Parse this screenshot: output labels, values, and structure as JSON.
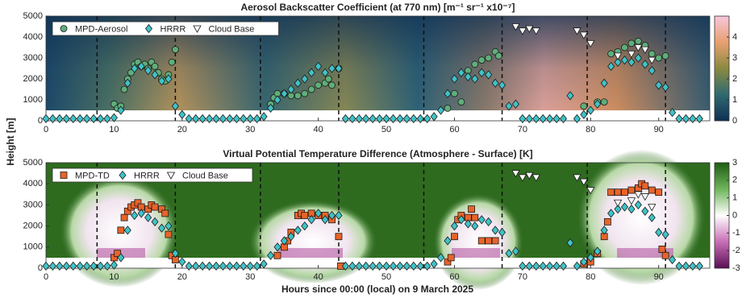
{
  "chart_data": [
    {
      "type": "scatter",
      "title": "Aerosol Backscatter Coefficient (at 770 nm) [m⁻¹ sr⁻¹ x10⁻⁷]",
      "ylabel": "Height [m]",
      "xlim": [
        0,
        97.5
      ],
      "xticks": [
        0,
        10,
        20,
        30,
        40,
        50,
        60,
        70,
        80,
        90
      ],
      "ylim": [
        0,
        5000
      ],
      "yticks": [
        0,
        1000,
        2000,
        3000,
        4000,
        5000
      ],
      "legend": "upper left",
      "vlines": [
        7.5,
        19,
        31.5,
        43,
        55.5,
        67,
        79.5,
        91
      ],
      "colorbar": {
        "lim": [
          0,
          5
        ],
        "ticks": [
          0,
          1,
          2,
          3,
          4
        ],
        "colors": [
          "#0f2f52",
          "#2f6a70",
          "#8a8a40",
          "#e8a070",
          "#f7c6dc"
        ]
      },
      "series": [
        {
          "name": "MPD-Aerosol",
          "marker": "circle",
          "color": "#5fae7a",
          "x": [
            10,
            10.5,
            11,
            11.5,
            12,
            12.5,
            13,
            13.5,
            14,
            14.5,
            15,
            15.5,
            16,
            16.5,
            17,
            17.5,
            18,
            18.5,
            19,
            33,
            33.5,
            34,
            35,
            36,
            37,
            38,
            39,
            40,
            41,
            41.5,
            42,
            43,
            59,
            60,
            61,
            62,
            63,
            64,
            65,
            66,
            66.5,
            79,
            81,
            82,
            83,
            84,
            85,
            86,
            87,
            88,
            89,
            90,
            91
          ],
          "values": [
            800,
            600,
            700,
            1500,
            2000,
            2300,
            2700,
            2800,
            2600,
            2700,
            2500,
            2800,
            2600,
            2300,
            2000,
            1900,
            2200,
            2800,
            3400,
            800,
            1100,
            1300,
            1300,
            1200,
            1200,
            1300,
            1500,
            1700,
            1800,
            2000,
            1700,
            2500,
            600,
            1300,
            900,
            2400,
            2700,
            2900,
            3000,
            3300,
            3100,
            700,
            900,
            900,
            3200,
            3300,
            3500,
            3700,
            3800,
            3600,
            3200,
            3000,
            3100
          ]
        },
        {
          "name": "HRRR",
          "marker": "diamond",
          "color": "#3fc3c8",
          "x": [
            0,
            1,
            2,
            3,
            4,
            5,
            6,
            7,
            8,
            9,
            10,
            11,
            12,
            13,
            14,
            15,
            16,
            17,
            18,
            19,
            20,
            21,
            22,
            23,
            24,
            25,
            26,
            27,
            28,
            29,
            30,
            31,
            32,
            33,
            34,
            35,
            36,
            37,
            38,
            39,
            40,
            41,
            42,
            43,
            44,
            45,
            46,
            47,
            48,
            49,
            50,
            51,
            52,
            53,
            54,
            55,
            56,
            57,
            58,
            59,
            60,
            61,
            62,
            63,
            64,
            65,
            66,
            67,
            68,
            69,
            70,
            71,
            72,
            73,
            74,
            75,
            76,
            77,
            78,
            79,
            80,
            81,
            82,
            83,
            84,
            85,
            86,
            87,
            88,
            89,
            90,
            91,
            92,
            93,
            94,
            95,
            96
          ],
          "values": [
            100,
            100,
            100,
            100,
            100,
            100,
            100,
            100,
            100,
            100,
            150,
            500,
            1800,
            2500,
            2600,
            2400,
            2200,
            1900,
            2000,
            700,
            300,
            100,
            100,
            100,
            100,
            100,
            100,
            100,
            100,
            100,
            100,
            100,
            200,
            600,
            1000,
            1300,
            1500,
            1800,
            2000,
            2300,
            2600,
            2300,
            2500,
            2500,
            100,
            100,
            100,
            100,
            100,
            100,
            100,
            100,
            100,
            100,
            100,
            100,
            100,
            200,
            500,
            1300,
            2000,
            2300,
            2100,
            2000,
            2300,
            2200,
            1800,
            1700,
            700,
            800,
            100,
            100,
            100,
            100,
            100,
            100,
            100,
            1200,
            100,
            300,
            500,
            800,
            1800,
            2600,
            2800,
            2900,
            2800,
            3000,
            2700,
            2400,
            1700,
            1600,
            400,
            100,
            100,
            100,
            100
          ]
        },
        {
          "name": "Cloud Base",
          "marker": "triangle",
          "color": "#ffffff",
          "x": [
            69,
            70,
            71,
            72,
            78,
            79,
            80,
            84,
            86,
            87,
            88,
            89
          ],
          "values": [
            4500,
            4300,
            4400,
            4300,
            4300,
            4100,
            3700,
            3100,
            3200,
            3500,
            3400,
            2900
          ]
        }
      ]
    },
    {
      "type": "scatter",
      "title": "Virtual Potential Temperature Difference (Atmosphere - Surface) [K]",
      "xlabel": "Hours since 00:00 (local) on 9 March 2025",
      "xlim": [
        0,
        97.5
      ],
      "xticks": [
        0,
        10,
        20,
        30,
        40,
        50,
        60,
        70,
        80,
        90
      ],
      "ylim": [
        0,
        5000
      ],
      "yticks": [
        0,
        1000,
        2000,
        3000,
        4000,
        5000
      ],
      "legend": "upper left",
      "vlines": [
        7.5,
        19,
        31.5,
        43,
        55.5,
        67,
        79.5,
        91
      ],
      "colorbar": {
        "lim": [
          -3,
          3
        ],
        "ticks": [
          -3,
          -2,
          -1,
          0,
          1,
          2,
          3
        ],
        "colors": [
          "#5a0f55",
          "#c86fb5",
          "#ffffff",
          "#6fb55a",
          "#1d5c12"
        ]
      },
      "series": [
        {
          "name": "MPD-TD",
          "marker": "square",
          "color": "#e8642a",
          "x": [
            10,
            10.5,
            11,
            11.5,
            12,
            12.5,
            13,
            13.5,
            14,
            15,
            15.5,
            16,
            17,
            17.5,
            18,
            18.5,
            19,
            34,
            35,
            35.5,
            36,
            37,
            37.5,
            38,
            39,
            40,
            41,
            42,
            43,
            43.3,
            59,
            59.5,
            60,
            60.5,
            61,
            62,
            62.5,
            63,
            64,
            65,
            66,
            79,
            80,
            81,
            82,
            82.5,
            83,
            84,
            85,
            86,
            87,
            87.5,
            88,
            89,
            90,
            90.5,
            91
          ],
          "values": [
            500,
            700,
            1800,
            2400,
            2700,
            2900,
            3000,
            3100,
            2900,
            2800,
            3000,
            2900,
            2800,
            2600,
            1600,
            600,
            400,
            600,
            1000,
            1300,
            1700,
            2500,
            2600,
            2500,
            2600,
            2500,
            2500,
            2300,
            1500,
            100,
            300,
            500,
            1500,
            2300,
            2500,
            2400,
            2800,
            2400,
            1300,
            1300,
            1300,
            200,
            300,
            700,
            1500,
            2200,
            3600,
            3600,
            3600,
            3700,
            3800,
            4000,
            3900,
            3700,
            3600,
            900,
            600
          ]
        },
        {
          "name": "HRRR",
          "marker": "diamond",
          "color": "#3fc3c8",
          "x": [
            0,
            1,
            2,
            3,
            4,
            5,
            6,
            7,
            8,
            9,
            10,
            11,
            12,
            13,
            14,
            15,
            16,
            17,
            18,
            19,
            20,
            21,
            22,
            23,
            24,
            25,
            26,
            27,
            28,
            29,
            30,
            31,
            32,
            33,
            34,
            35,
            36,
            37,
            38,
            39,
            40,
            41,
            42,
            43,
            44,
            45,
            46,
            47,
            48,
            49,
            50,
            51,
            52,
            53,
            54,
            55,
            56,
            57,
            58,
            59,
            60,
            61,
            62,
            63,
            64,
            65,
            66,
            67,
            68,
            69,
            70,
            71,
            72,
            73,
            74,
            75,
            76,
            77,
            78,
            79,
            80,
            81,
            82,
            83,
            84,
            85,
            86,
            87,
            88,
            89,
            90,
            91,
            92,
            93,
            94,
            95,
            96
          ],
          "values": [
            100,
            100,
            100,
            100,
            100,
            100,
            100,
            100,
            100,
            100,
            150,
            500,
            1800,
            2500,
            2600,
            2400,
            2200,
            1900,
            2000,
            700,
            300,
            100,
            100,
            100,
            100,
            100,
            100,
            100,
            100,
            100,
            100,
            100,
            200,
            600,
            1000,
            1300,
            1500,
            1800,
            2000,
            2300,
            2600,
            2300,
            2500,
            2500,
            100,
            100,
            100,
            100,
            100,
            100,
            100,
            100,
            100,
            100,
            100,
            100,
            100,
            200,
            500,
            1300,
            2000,
            2300,
            2100,
            2000,
            2300,
            2200,
            1800,
            1700,
            700,
            800,
            100,
            100,
            100,
            100,
            100,
            100,
            100,
            1200,
            100,
            300,
            500,
            800,
            1800,
            2600,
            2800,
            2900,
            2800,
            3000,
            2700,
            2400,
            1700,
            1600,
            400,
            100,
            100,
            100,
            100
          ]
        },
        {
          "name": "Cloud Base",
          "marker": "triangle",
          "color": "#ffffff",
          "x": [
            69,
            70,
            71,
            72,
            78,
            79,
            80,
            84,
            86,
            87,
            88,
            89
          ],
          "values": [
            4500,
            4300,
            4400,
            4300,
            4300,
            4100,
            3700,
            3100,
            3200,
            3500,
            3400,
            2900
          ]
        }
      ]
    }
  ]
}
